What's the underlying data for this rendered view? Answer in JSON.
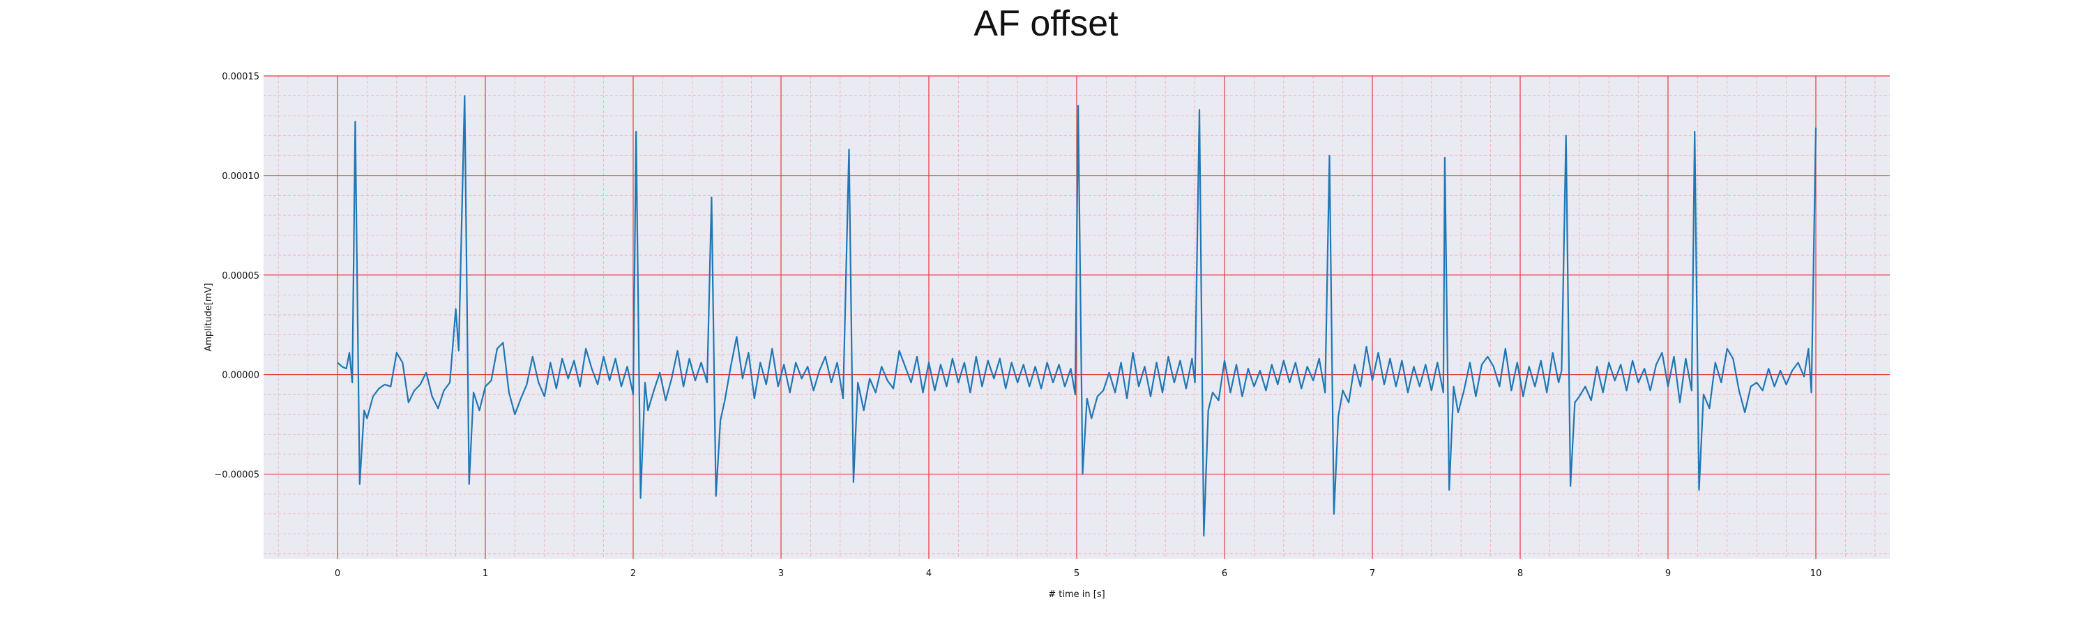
{
  "chart_data": {
    "type": "line",
    "title": "AF offset",
    "xlabel": "# time in [s]",
    "ylabel": "Amplitude[mV]",
    "xlim": [
      -0.5,
      10.5
    ],
    "ylim": [
      -9.25e-05,
      0.00015
    ],
    "xticks": [
      0,
      1,
      2,
      3,
      4,
      5,
      6,
      7,
      8,
      9,
      10
    ],
    "xtick_labels": [
      "0",
      "1",
      "2",
      "3",
      "4",
      "5",
      "6",
      "7",
      "8",
      "9",
      "10"
    ],
    "yticks": [
      -5e-05,
      0,
      5e-05,
      0.0001,
      0.00015
    ],
    "ytick_labels": [
      "−0.00005",
      "0.00000",
      "0.00005",
      "0.00010",
      "0.00015"
    ],
    "grid": {
      "major": true,
      "minor": true
    },
    "colors": {
      "background": "#eaeaf2",
      "major_grid": "#e8393b",
      "minor_grid": "#f4a9b4",
      "line": "#1f77b4"
    },
    "series": [
      {
        "values_note": "",
        "points": [
          [
            0.0,
            6e-06
          ],
          [
            0.03,
            4e-06
          ],
          [
            0.06,
            3e-06
          ],
          [
            0.08,
            1.1e-05
          ],
          [
            0.1,
            -4e-06
          ],
          [
            0.12,
            0.000127
          ],
          [
            0.15,
            -5.5e-05
          ],
          [
            0.18,
            -1.8e-05
          ],
          [
            0.2,
            -2.2e-05
          ],
          [
            0.24,
            -1.1e-05
          ],
          [
            0.28,
            -7e-06
          ],
          [
            0.32,
            -5e-06
          ],
          [
            0.36,
            -6e-06
          ],
          [
            0.4,
            1.1e-05
          ],
          [
            0.44,
            6e-06
          ],
          [
            0.48,
            -1.4e-05
          ],
          [
            0.52,
            -8e-06
          ],
          [
            0.56,
            -5e-06
          ],
          [
            0.6,
            1e-06
          ],
          [
            0.64,
            -1.1e-05
          ],
          [
            0.68,
            -1.7e-05
          ],
          [
            0.72,
            -8e-06
          ],
          [
            0.76,
            -4e-06
          ],
          [
            0.8,
            3.3e-05
          ],
          [
            0.82,
            1.2e-05
          ],
          [
            0.86,
            0.00014
          ],
          [
            0.89,
            -5.5e-05
          ],
          [
            0.92,
            -9e-06
          ],
          [
            0.96,
            -1.8e-05
          ],
          [
            1.0,
            -6e-06
          ],
          [
            1.04,
            -3e-06
          ],
          [
            1.08,
            1.3e-05
          ],
          [
            1.12,
            1.6e-05
          ],
          [
            1.16,
            -9e-06
          ],
          [
            1.2,
            -2e-05
          ],
          [
            1.24,
            -1.2e-05
          ],
          [
            1.28,
            -5e-06
          ],
          [
            1.32,
            9e-06
          ],
          [
            1.36,
            -4e-06
          ],
          [
            1.4,
            -1.1e-05
          ],
          [
            1.44,
            6e-06
          ],
          [
            1.48,
            -7e-06
          ],
          [
            1.52,
            8e-06
          ],
          [
            1.56,
            -2e-06
          ],
          [
            1.6,
            7e-06
          ],
          [
            1.64,
            -6e-06
          ],
          [
            1.68,
            1.3e-05
          ],
          [
            1.72,
            3e-06
          ],
          [
            1.76,
            -5e-06
          ],
          [
            1.8,
            9e-06
          ],
          [
            1.84,
            -3e-06
          ],
          [
            1.88,
            8e-06
          ],
          [
            1.92,
            -6e-06
          ],
          [
            1.96,
            4e-06
          ],
          [
            2.0,
            -1e-05
          ],
          [
            2.02,
            0.000122
          ],
          [
            2.05,
            -6.2e-05
          ],
          [
            2.08,
            -4e-06
          ],
          [
            2.1,
            -1.8e-05
          ],
          [
            2.14,
            -8e-06
          ],
          [
            2.18,
            1e-06
          ],
          [
            2.22,
            -1.3e-05
          ],
          [
            2.26,
            -2e-06
          ],
          [
            2.3,
            1.2e-05
          ],
          [
            2.34,
            -6e-06
          ],
          [
            2.38,
            8e-06
          ],
          [
            2.42,
            -3e-06
          ],
          [
            2.46,
            6e-06
          ],
          [
            2.5,
            -4e-06
          ],
          [
            2.53,
            8.9e-05
          ],
          [
            2.56,
            -6.1e-05
          ],
          [
            2.59,
            -2.3e-05
          ],
          [
            2.62,
            -1.3e-05
          ],
          [
            2.66,
            4e-06
          ],
          [
            2.7,
            1.9e-05
          ],
          [
            2.74,
            -2e-06
          ],
          [
            2.78,
            1.1e-05
          ],
          [
            2.82,
            -1.2e-05
          ],
          [
            2.86,
            6e-06
          ],
          [
            2.9,
            -5e-06
          ],
          [
            2.94,
            1.3e-05
          ],
          [
            2.98,
            -6e-06
          ],
          [
            3.02,
            5e-06
          ],
          [
            3.06,
            -9e-06
          ],
          [
            3.1,
            6e-06
          ],
          [
            3.14,
            -2e-06
          ],
          [
            3.18,
            4e-06
          ],
          [
            3.22,
            -8e-06
          ],
          [
            3.26,
            2e-06
          ],
          [
            3.3,
            9e-06
          ],
          [
            3.34,
            -4e-06
          ],
          [
            3.38,
            6e-06
          ],
          [
            3.42,
            -1.2e-05
          ],
          [
            3.46,
            0.000113
          ],
          [
            3.49,
            -5.4e-05
          ],
          [
            3.52,
            -4e-06
          ],
          [
            3.56,
            -1.8e-05
          ],
          [
            3.6,
            -2e-06
          ],
          [
            3.64,
            -9e-06
          ],
          [
            3.68,
            4e-06
          ],
          [
            3.72,
            -3e-06
          ],
          [
            3.76,
            -7e-06
          ],
          [
            3.8,
            1.2e-05
          ],
          [
            3.84,
            4e-06
          ],
          [
            3.88,
            -4e-06
          ],
          [
            3.92,
            9e-06
          ],
          [
            3.96,
            -9e-06
          ],
          [
            4.0,
            6e-06
          ],
          [
            4.04,
            -8e-06
          ],
          [
            4.08,
            5e-06
          ],
          [
            4.12,
            -6e-06
          ],
          [
            4.16,
            8e-06
          ],
          [
            4.2,
            -4e-06
          ],
          [
            4.24,
            6e-06
          ],
          [
            4.28,
            -9e-06
          ],
          [
            4.32,
            9e-06
          ],
          [
            4.36,
            -6e-06
          ],
          [
            4.4,
            7e-06
          ],
          [
            4.44,
            -2e-06
          ],
          [
            4.48,
            8e-06
          ],
          [
            4.52,
            -7e-06
          ],
          [
            4.56,
            6e-06
          ],
          [
            4.6,
            -4e-06
          ],
          [
            4.64,
            5e-06
          ],
          [
            4.68,
            -6e-06
          ],
          [
            4.72,
            4e-06
          ],
          [
            4.76,
            -7e-06
          ],
          [
            4.8,
            6e-06
          ],
          [
            4.84,
            -4e-06
          ],
          [
            4.88,
            5e-06
          ],
          [
            4.92,
            -6e-06
          ],
          [
            4.96,
            3e-06
          ],
          [
            4.99,
            -1e-05
          ],
          [
            5.01,
            0.000135
          ],
          [
            5.04,
            -5e-05
          ],
          [
            5.07,
            -1.2e-05
          ],
          [
            5.1,
            -2.2e-05
          ],
          [
            5.14,
            -1.1e-05
          ],
          [
            5.18,
            -8e-06
          ],
          [
            5.22,
            1e-06
          ],
          [
            5.26,
            -9e-06
          ],
          [
            5.3,
            6e-06
          ],
          [
            5.34,
            -1.2e-05
          ],
          [
            5.38,
            1.1e-05
          ],
          [
            5.42,
            -6e-06
          ],
          [
            5.46,
            4e-06
          ],
          [
            5.5,
            -1.1e-05
          ],
          [
            5.54,
            6e-06
          ],
          [
            5.58,
            -9e-06
          ],
          [
            5.62,
            9e-06
          ],
          [
            5.66,
            -4e-06
          ],
          [
            5.7,
            7e-06
          ],
          [
            5.74,
            -7e-06
          ],
          [
            5.78,
            8e-06
          ],
          [
            5.8,
            -4e-06
          ],
          [
            5.83,
            0.000133
          ],
          [
            5.86,
            -8.1e-05
          ],
          [
            5.89,
            -1.8e-05
          ],
          [
            5.92,
            -9e-06
          ],
          [
            5.96,
            -1.3e-05
          ],
          [
            6.0,
            7e-06
          ],
          [
            6.04,
            -9e-06
          ],
          [
            6.08,
            5e-06
          ],
          [
            6.12,
            -1.1e-05
          ],
          [
            6.16,
            3e-06
          ],
          [
            6.2,
            -6e-06
          ],
          [
            6.24,
            2e-06
          ],
          [
            6.28,
            -8e-06
          ],
          [
            6.32,
            5e-06
          ],
          [
            6.36,
            -5e-06
          ],
          [
            6.4,
            7e-06
          ],
          [
            6.44,
            -4e-06
          ],
          [
            6.48,
            6e-06
          ],
          [
            6.52,
            -7e-06
          ],
          [
            6.56,
            4e-06
          ],
          [
            6.6,
            -3e-06
          ],
          [
            6.64,
            8e-06
          ],
          [
            6.68,
            -9e-06
          ],
          [
            6.71,
            0.00011
          ],
          [
            6.74,
            -7e-05
          ],
          [
            6.77,
            -2.1e-05
          ],
          [
            6.8,
            -8e-06
          ],
          [
            6.84,
            -1.4e-05
          ],
          [
            6.88,
            5e-06
          ],
          [
            6.92,
            -6e-06
          ],
          [
            6.96,
            1.4e-05
          ],
          [
            7.0,
            -3e-06
          ],
          [
            7.04,
            1.1e-05
          ],
          [
            7.08,
            -5e-06
          ],
          [
            7.12,
            8e-06
          ],
          [
            7.16,
            -6e-06
          ],
          [
            7.2,
            7e-06
          ],
          [
            7.24,
            -9e-06
          ],
          [
            7.28,
            4e-06
          ],
          [
            7.32,
            -6e-06
          ],
          [
            7.36,
            5e-06
          ],
          [
            7.4,
            -8e-06
          ],
          [
            7.44,
            6e-06
          ],
          [
            7.48,
            -9e-06
          ],
          [
            7.49,
            0.000109
          ],
          [
            7.52,
            -5.8e-05
          ],
          [
            7.55,
            -6e-06
          ],
          [
            7.58,
            -1.9e-05
          ],
          [
            7.62,
            -8e-06
          ],
          [
            7.66,
            6e-06
          ],
          [
            7.7,
            -1.1e-05
          ],
          [
            7.74,
            5e-06
          ],
          [
            7.78,
            9e-06
          ],
          [
            7.82,
            4e-06
          ],
          [
            7.86,
            -6e-06
          ],
          [
            7.9,
            1.3e-05
          ],
          [
            7.94,
            -8e-06
          ],
          [
            7.98,
            6e-06
          ],
          [
            8.02,
            -1.1e-05
          ],
          [
            8.06,
            4e-06
          ],
          [
            8.1,
            -6e-06
          ],
          [
            8.14,
            7e-06
          ],
          [
            8.18,
            -9e-06
          ],
          [
            8.22,
            1.1e-05
          ],
          [
            8.26,
            -4e-06
          ],
          [
            8.28,
            2e-06
          ],
          [
            8.31,
            0.00012
          ],
          [
            8.34,
            -5.6e-05
          ],
          [
            8.37,
            -1.4e-05
          ],
          [
            8.4,
            -1.1e-05
          ],
          [
            8.44,
            -6e-06
          ],
          [
            8.48,
            -1.3e-05
          ],
          [
            8.52,
            4e-06
          ],
          [
            8.56,
            -9e-06
          ],
          [
            8.6,
            6e-06
          ],
          [
            8.64,
            -3e-06
          ],
          [
            8.68,
            5e-06
          ],
          [
            8.72,
            -8e-06
          ],
          [
            8.76,
            7e-06
          ],
          [
            8.8,
            -4e-06
          ],
          [
            8.84,
            3e-06
          ],
          [
            8.88,
            -8e-06
          ],
          [
            8.92,
            5e-06
          ],
          [
            8.96,
            1.1e-05
          ],
          [
            9.0,
            -6e-06
          ],
          [
            9.04,
            9e-06
          ],
          [
            9.08,
            -1.4e-05
          ],
          [
            9.12,
            8e-06
          ],
          [
            9.16,
            -8e-06
          ],
          [
            9.18,
            0.000122
          ],
          [
            9.21,
            -5.8e-05
          ],
          [
            9.24,
            -1e-05
          ],
          [
            9.28,
            -1.7e-05
          ],
          [
            9.32,
            6e-06
          ],
          [
            9.36,
            -4e-06
          ],
          [
            9.4,
            1.3e-05
          ],
          [
            9.44,
            8e-06
          ],
          [
            9.48,
            -8e-06
          ],
          [
            9.52,
            -1.9e-05
          ],
          [
            9.56,
            -6e-06
          ],
          [
            9.6,
            -4e-06
          ],
          [
            9.64,
            -8e-06
          ],
          [
            9.68,
            3e-06
          ],
          [
            9.72,
            -6e-06
          ],
          [
            9.76,
            2e-06
          ],
          [
            9.8,
            -5e-06
          ],
          [
            9.84,
            2e-06
          ],
          [
            9.88,
            6e-06
          ],
          [
            9.92,
            -1e-06
          ],
          [
            9.95,
            1.3e-05
          ],
          [
            9.97,
            -9e-06
          ],
          [
            10.0,
            0.000124
          ]
        ]
      }
    ]
  }
}
